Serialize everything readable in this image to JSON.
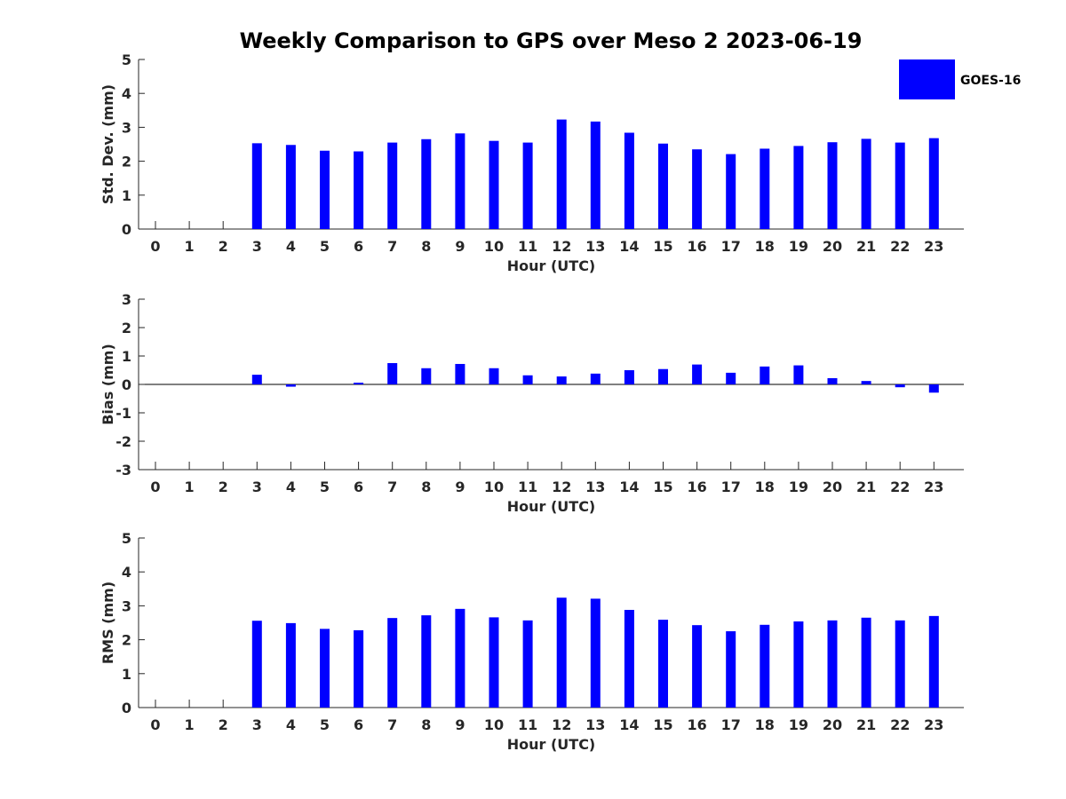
{
  "chart_data": {
    "title": "Weekly Comparison to GPS over Meso 2 2023-06-19",
    "colors": {
      "bar": "#0000ff",
      "axis": "#262626"
    },
    "legend": {
      "entries": [
        "GOES-16"
      ],
      "placement": "top-right"
    },
    "panels": [
      {
        "type": "bar",
        "title": "",
        "xlabel": "Hour (UTC)",
        "ylabel": "Std. Dev. (mm)",
        "ylim": [
          0,
          5
        ],
        "yticks": [
          "0",
          "1",
          "2",
          "3",
          "4",
          "5"
        ],
        "categories": [
          "0",
          "1",
          "2",
          "3",
          "4",
          "5",
          "6",
          "7",
          "8",
          "9",
          "10",
          "11",
          "12",
          "13",
          "14",
          "15",
          "16",
          "17",
          "18",
          "19",
          "20",
          "21",
          "22",
          "23"
        ],
        "series": [
          {
            "name": "GOES-16",
            "values": [
              null,
              null,
              null,
              2.53,
              2.48,
              2.31,
              2.29,
              2.55,
              2.65,
              2.82,
              2.6,
              2.55,
              3.23,
              3.17,
              2.84,
              2.52,
              2.35,
              2.21,
              2.37,
              2.45,
              2.56,
              2.66,
              2.55,
              2.68
            ]
          }
        ]
      },
      {
        "type": "bar",
        "title": "",
        "xlabel": "Hour (UTC)",
        "ylabel": "Bias (mm)",
        "ylim": [
          -3,
          3
        ],
        "yticks": [
          "-3",
          "-2",
          "-1",
          "0",
          "1",
          "2",
          "3"
        ],
        "categories": [
          "0",
          "1",
          "2",
          "3",
          "4",
          "5",
          "6",
          "7",
          "8",
          "9",
          "10",
          "11",
          "12",
          "13",
          "14",
          "15",
          "16",
          "17",
          "18",
          "19",
          "20",
          "21",
          "22",
          "23"
        ],
        "series": [
          {
            "name": "GOES-16",
            "values": [
              null,
              null,
              null,
              0.34,
              -0.08,
              0.0,
              0.06,
              0.75,
              0.57,
              0.72,
              0.57,
              0.32,
              0.28,
              0.38,
              0.5,
              0.54,
              0.7,
              0.41,
              0.63,
              0.67,
              0.22,
              0.12,
              -0.1,
              -0.29
            ]
          }
        ]
      },
      {
        "type": "bar",
        "title": "",
        "xlabel": "Hour (UTC)",
        "ylabel": "RMS (mm)",
        "ylim": [
          0,
          5
        ],
        "yticks": [
          "0",
          "1",
          "2",
          "3",
          "4",
          "5"
        ],
        "categories": [
          "0",
          "1",
          "2",
          "3",
          "4",
          "5",
          "6",
          "7",
          "8",
          "9",
          "10",
          "11",
          "12",
          "13",
          "14",
          "15",
          "16",
          "17",
          "18",
          "19",
          "20",
          "21",
          "22",
          "23"
        ],
        "series": [
          {
            "name": "GOES-16",
            "values": [
              null,
              null,
              null,
              2.56,
              2.49,
              2.32,
              2.28,
              2.64,
              2.72,
              2.91,
              2.66,
              2.57,
              3.24,
              3.21,
              2.88,
              2.59,
              2.43,
              2.25,
              2.44,
              2.54,
              2.57,
              2.65,
              2.57,
              2.7
            ]
          }
        ]
      }
    ]
  }
}
